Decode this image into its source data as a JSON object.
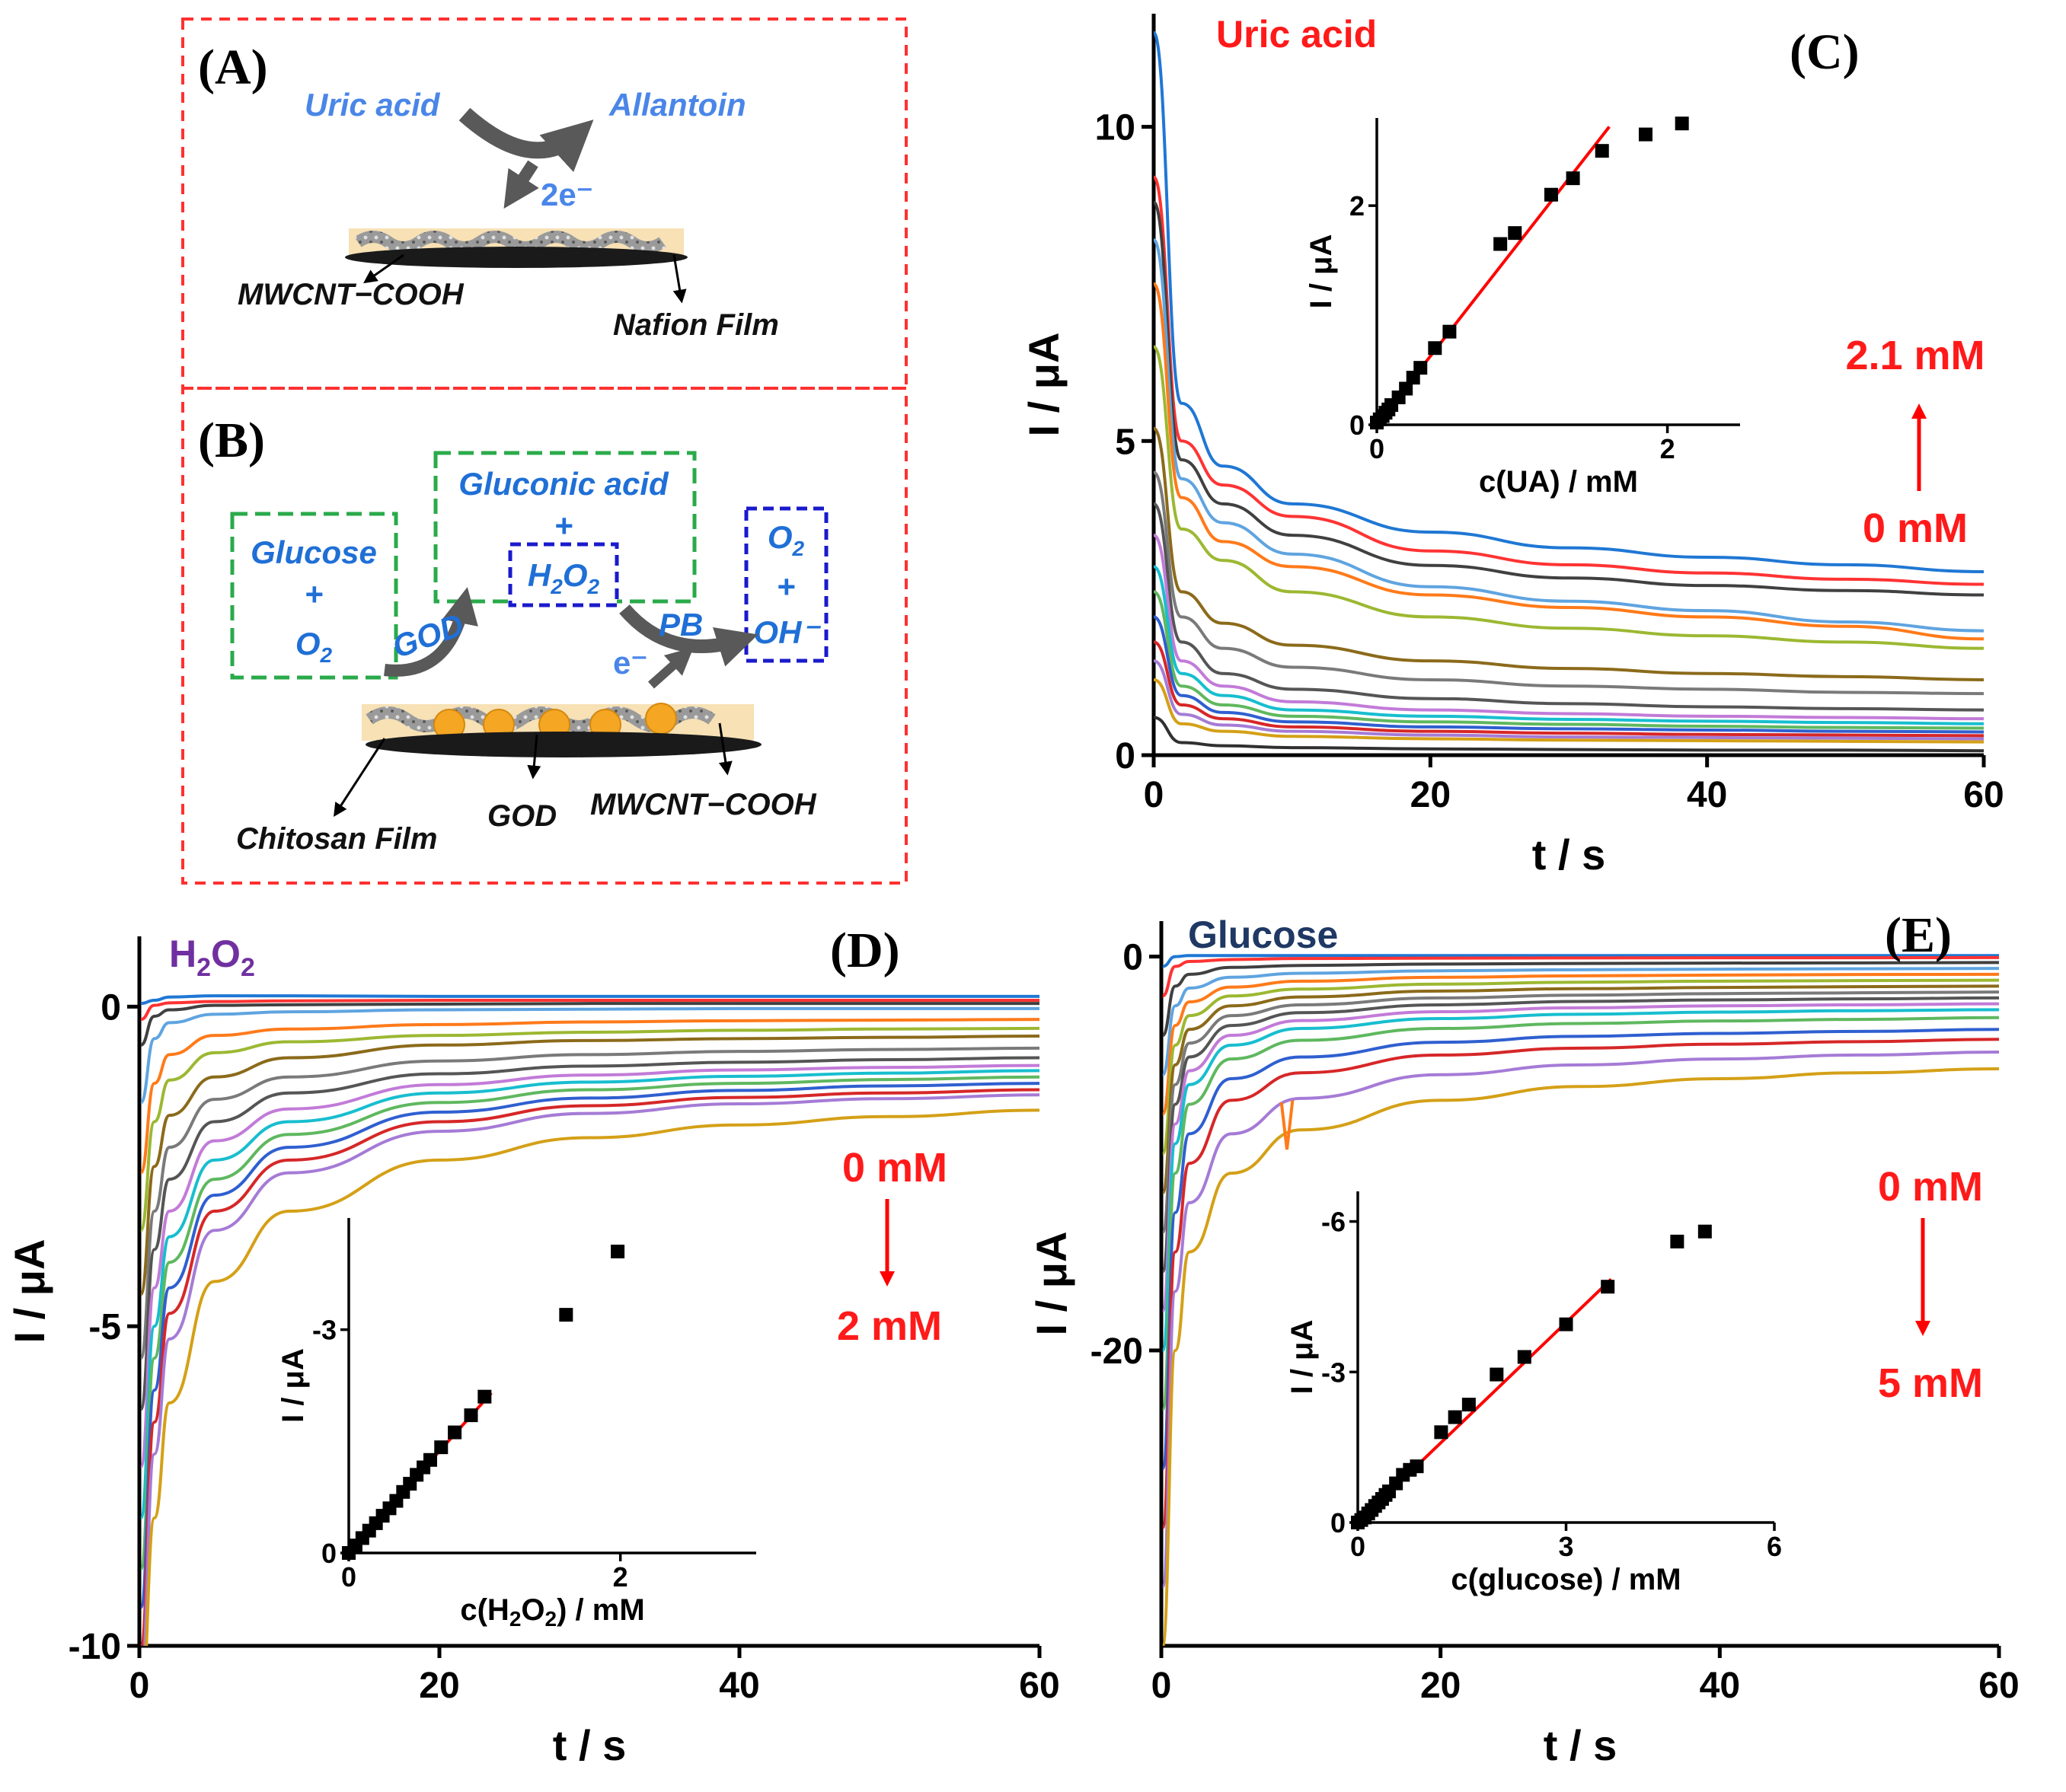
{
  "scheme_a": {
    "panel_label": "(A)",
    "reactant": "Uric acid",
    "product": "Allantoin",
    "electrons": "2e⁻",
    "label_left": "MWCNT−COOH",
    "label_right": "Nafion Film"
  },
  "scheme_b": {
    "panel_label": "(B)",
    "box1_line1": "Glucose",
    "box1_line2": "+",
    "box1_line3": "O",
    "box1_line3_sub": "2",
    "box2_line1": "Gluconic acid",
    "box2_line2": "+",
    "box3_main": "H",
    "box3_sub1": "2",
    "box3_mid": "O",
    "box3_sub2": "2",
    "box4_line1": "O",
    "box4_line1_sub": "2",
    "box4_line2": "+",
    "box4_line3": "OH⁻",
    "enzyme_label": "GOD",
    "pb_label": "PB",
    "electron_label": "e⁻",
    "label_film": "Chitosan Film",
    "label_god": "GOD",
    "label_cnt": "MWCNT−COOH"
  },
  "colors": {
    "red_accent": "#ff1a1a",
    "scheme_text_blue": "#4a86e8",
    "dashed_red": "#ff3030",
    "dashed_green": "#2aaa4a",
    "dashed_blue": "#1a1acc",
    "fit_red": "#ff0000",
    "h2o2_purple": "#7030a0",
    "glucose_navy": "#1f3864"
  },
  "panel_c": {
    "panel_label": "(C)",
    "analyte": "Uric acid",
    "conc_high": "2.1 mM",
    "conc_low": "0 mM"
  },
  "panel_d": {
    "panel_label": "(D)",
    "analyte_main": "H",
    "analyte_sub1": "2",
    "analyte_mid": "O",
    "analyte_sub2": "2",
    "conc_start": "0 mM",
    "conc_end": "2 mM"
  },
  "panel_e": {
    "panel_label": "(E)",
    "analyte": "Glucose",
    "conc_start": "0 mM",
    "conc_end": "5 mM"
  },
  "chart_data": [
    {
      "id": "C-main",
      "type": "line",
      "title": "Uric acid",
      "xlabel": "t / s",
      "ylabel": "I / μA",
      "xlim": [
        0,
        60
      ],
      "ylim": [
        0,
        11.8
      ],
      "xticks": [
        "0",
        "20",
        "40",
        "60"
      ],
      "yticks": [
        "0",
        "5",
        "10"
      ],
      "x": [
        0,
        2,
        5,
        10,
        20,
        30,
        40,
        50,
        60
      ],
      "series_note_colors": [
        "#1f77d4",
        "#ff3333",
        "#404040",
        "#2e9ecf",
        "#ff7a1a",
        "#9cb832",
        "#8b6a1a",
        "#c0c0c0",
        "#555555",
        "#e377c2",
        "#17becf",
        "#5fb85f",
        "#1f77d4",
        "#d62728",
        "#9467bd",
        "#ff9933",
        "#404040"
      ],
      "series": [
        {
          "values": [
            11.5,
            5.6,
            4.6,
            4.0,
            3.55,
            3.3,
            3.15,
            3.03,
            2.92
          ]
        },
        {
          "values": [
            9.2,
            5.0,
            4.3,
            3.8,
            3.25,
            3.03,
            2.9,
            2.8,
            2.72
          ]
        },
        {
          "values": [
            8.8,
            4.7,
            4.0,
            3.5,
            3.02,
            2.82,
            2.7,
            2.62,
            2.55
          ]
        },
        {
          "values": [
            8.2,
            4.4,
            3.7,
            3.2,
            2.68,
            2.45,
            2.3,
            2.12,
            1.98
          ]
        },
        {
          "values": [
            7.5,
            4.1,
            3.4,
            3.0,
            2.55,
            2.35,
            2.2,
            2.05,
            1.85
          ]
        },
        {
          "values": [
            6.5,
            3.6,
            3.1,
            2.6,
            2.2,
            2.02,
            1.9,
            1.8,
            1.7
          ]
        },
        {
          "values": [
            5.2,
            2.6,
            2.1,
            1.75,
            1.5,
            1.38,
            1.3,
            1.25,
            1.2
          ]
        },
        {
          "values": [
            4.5,
            2.2,
            1.7,
            1.4,
            1.2,
            1.1,
            1.05,
            1.0,
            0.98
          ]
        },
        {
          "values": [
            4.0,
            1.8,
            1.3,
            1.05,
            0.9,
            0.82,
            0.77,
            0.74,
            0.72
          ]
        },
        {
          "values": [
            3.5,
            1.5,
            1.1,
            0.85,
            0.72,
            0.66,
            0.62,
            0.6,
            0.58
          ]
        },
        {
          "values": [
            3.0,
            1.3,
            0.95,
            0.72,
            0.62,
            0.57,
            0.54,
            0.52,
            0.5
          ]
        },
        {
          "values": [
            2.6,
            1.1,
            0.8,
            0.62,
            0.53,
            0.49,
            0.46,
            0.44,
            0.43
          ]
        },
        {
          "values": [
            2.2,
            0.95,
            0.68,
            0.53,
            0.45,
            0.42,
            0.4,
            0.38,
            0.37
          ]
        },
        {
          "values": [
            1.8,
            0.8,
            0.58,
            0.45,
            0.38,
            0.35,
            0.33,
            0.32,
            0.31
          ]
        },
        {
          "values": [
            1.5,
            0.65,
            0.48,
            0.38,
            0.32,
            0.29,
            0.28,
            0.27,
            0.26
          ]
        },
        {
          "values": [
            1.2,
            0.5,
            0.38,
            0.3,
            0.26,
            0.24,
            0.23,
            0.22,
            0.21
          ]
        },
        {
          "values": [
            0.6,
            0.2,
            0.15,
            0.12,
            0.1,
            0.09,
            0.08,
            0.08,
            0.07
          ]
        }
      ]
    },
    {
      "id": "C-inset",
      "type": "scatter",
      "xlabel": "c(UA) / mM",
      "ylabel": "I / μA",
      "xlim": [
        0,
        2.5
      ],
      "ylim": [
        0,
        2.8
      ],
      "xticks": [
        "0",
        "2"
      ],
      "yticks": [
        "0",
        "2"
      ],
      "points": [
        [
          0.0,
          0.02
        ],
        [
          0.02,
          0.05
        ],
        [
          0.04,
          0.08
        ],
        [
          0.06,
          0.11
        ],
        [
          0.08,
          0.14
        ],
        [
          0.1,
          0.18
        ],
        [
          0.15,
          0.25
        ],
        [
          0.2,
          0.33
        ],
        [
          0.25,
          0.43
        ],
        [
          0.3,
          0.52
        ],
        [
          0.4,
          0.7
        ],
        [
          0.5,
          0.85
        ],
        [
          0.85,
          1.65
        ],
        [
          0.95,
          1.75
        ],
        [
          1.2,
          2.1
        ],
        [
          1.35,
          2.25
        ],
        [
          1.55,
          2.5
        ],
        [
          1.85,
          2.65
        ],
        [
          2.1,
          2.75
        ]
      ],
      "fit": [
        [
          0,
          0
        ],
        [
          1.6,
          2.72
        ]
      ]
    },
    {
      "id": "D-main",
      "type": "line",
      "title": "H2O2",
      "xlabel": "t / s",
      "ylabel": "I / μA",
      "xlim": [
        0,
        60
      ],
      "ylim": [
        -10,
        1.1
      ],
      "xticks": [
        "0",
        "20",
        "40",
        "60"
      ],
      "yticks": [
        "-10",
        "-5",
        "0"
      ],
      "x": [
        0.1,
        1,
        2,
        5,
        10,
        20,
        30,
        40,
        50,
        60
      ],
      "series": [
        {
          "values": [
            0.05,
            0.1,
            0.15,
            0.17,
            0.17,
            0.16,
            0.16,
            0.16,
            0.16,
            0.16
          ]
        },
        {
          "values": [
            -0.2,
            0.02,
            0.06,
            0.08,
            0.09,
            0.1,
            0.1,
            0.1,
            0.1,
            0.1
          ]
        },
        {
          "values": [
            -0.6,
            -0.15,
            -0.05,
            0.02,
            0.03,
            0.04,
            0.05,
            0.05,
            0.05,
            0.05
          ]
        },
        {
          "values": [
            -1.5,
            -0.5,
            -0.25,
            -0.12,
            -0.08,
            -0.05,
            -0.04,
            -0.03,
            -0.03,
            -0.03
          ]
        },
        {
          "values": [
            -2.6,
            -1.2,
            -0.75,
            -0.45,
            -0.35,
            -0.28,
            -0.24,
            -0.22,
            -0.21,
            -0.2
          ]
        },
        {
          "values": [
            -3.5,
            -1.8,
            -1.15,
            -0.72,
            -0.55,
            -0.45,
            -0.4,
            -0.37,
            -0.35,
            -0.34
          ]
        },
        {
          "values": [
            -4.5,
            -2.5,
            -1.7,
            -1.1,
            -0.8,
            -0.6,
            -0.53,
            -0.5,
            -0.48,
            -0.46
          ]
        },
        {
          "values": [
            -5.5,
            -3.2,
            -2.2,
            -1.45,
            -1.1,
            -0.85,
            -0.75,
            -0.7,
            -0.67,
            -0.65
          ]
        },
        {
          "values": [
            -6.3,
            -3.8,
            -2.7,
            -1.8,
            -1.35,
            -1.05,
            -0.93,
            -0.87,
            -0.83,
            -0.8
          ]
        },
        {
          "values": [
            -7.2,
            -4.4,
            -3.2,
            -2.1,
            -1.6,
            -1.22,
            -1.07,
            -0.99,
            -0.95,
            -0.92
          ]
        },
        {
          "values": [
            -8.0,
            -5.0,
            -3.6,
            -2.4,
            -1.8,
            -1.35,
            -1.18,
            -1.09,
            -1.04,
            -1.0
          ]
        },
        {
          "values": [
            -8.8,
            -5.5,
            -4.0,
            -2.7,
            -2.0,
            -1.5,
            -1.3,
            -1.2,
            -1.14,
            -1.1
          ]
        },
        {
          "values": [
            -9.4,
            -6.0,
            -4.4,
            -2.95,
            -2.2,
            -1.65,
            -1.43,
            -1.31,
            -1.24,
            -1.2
          ]
        },
        {
          "values": [
            -10.0,
            -6.5,
            -4.8,
            -3.2,
            -2.4,
            -1.8,
            -1.55,
            -1.42,
            -1.35,
            -1.3
          ]
        },
        {
          "values": [
            -10.5,
            -7.0,
            -5.2,
            -3.5,
            -2.6,
            -1.95,
            -1.67,
            -1.52,
            -1.44,
            -1.38
          ]
        },
        {
          "values": [
            -11.0,
            -8.0,
            -6.2,
            -4.3,
            -3.2,
            -2.4,
            -2.05,
            -1.85,
            -1.72,
            -1.62
          ]
        }
      ]
    },
    {
      "id": "D-inset",
      "type": "scatter",
      "xlabel": "c(H2O2) / mM",
      "ylabel": "I / μA",
      "xlim": [
        0,
        3
      ],
      "ylim": [
        0,
        -4.5
      ],
      "xticks": [
        "0",
        "2"
      ],
      "yticks": [
        "0",
        "-3"
      ],
      "points": [
        [
          0.0,
          0.0
        ],
        [
          0.05,
          -0.1
        ],
        [
          0.1,
          -0.2
        ],
        [
          0.15,
          -0.3
        ],
        [
          0.2,
          -0.4
        ],
        [
          0.25,
          -0.5
        ],
        [
          0.3,
          -0.6
        ],
        [
          0.35,
          -0.7
        ],
        [
          0.4,
          -0.82
        ],
        [
          0.45,
          -0.93
        ],
        [
          0.5,
          -1.05
        ],
        [
          0.55,
          -1.15
        ],
        [
          0.6,
          -1.25
        ],
        [
          0.68,
          -1.42
        ],
        [
          0.78,
          -1.62
        ],
        [
          0.9,
          -1.85
        ],
        [
          1.0,
          -2.1
        ],
        [
          1.6,
          -3.2
        ],
        [
          1.98,
          -4.05
        ]
      ],
      "fit": [
        [
          0,
          0
        ],
        [
          1.05,
          -2.15
        ]
      ]
    },
    {
      "id": "E-main",
      "type": "line",
      "title": "Glucose",
      "xlabel": "t / s",
      "ylabel": "I / μA",
      "xlim": [
        0,
        60
      ],
      "ylim": [
        -35,
        1.8
      ],
      "xticks": [
        "0",
        "20",
        "40",
        "60"
      ],
      "yticks": [
        "-20",
        "0"
      ],
      "x": [
        0.1,
        1,
        2,
        5,
        10,
        20,
        30,
        40,
        50,
        60
      ],
      "series": [
        {
          "values": [
            -0.5,
            0.0,
            0.05,
            0.05,
            0.05,
            0.05,
            0.05,
            0.05,
            0.05,
            0.05
          ]
        },
        {
          "values": [
            -2,
            -0.5,
            -0.25,
            -0.15,
            -0.1,
            -0.08,
            -0.07,
            -0.06,
            -0.06,
            -0.05
          ]
        },
        {
          "values": [
            -4,
            -1.5,
            -0.9,
            -0.55,
            -0.45,
            -0.38,
            -0.35,
            -0.33,
            -0.32,
            -0.3
          ]
        },
        {
          "values": [
            -6,
            -2.5,
            -1.6,
            -1.05,
            -0.85,
            -0.72,
            -0.67,
            -0.64,
            -0.62,
            -0.6
          ]
        },
        {
          "values": [
            -8,
            -3.5,
            -2.3,
            -1.55,
            -1.25,
            -1.05,
            -0.98,
            -0.94,
            -0.91,
            -0.9
          ]
        },
        {
          "values": [
            -10,
            -4.5,
            -3.0,
            -2.0,
            -1.65,
            -1.4,
            -1.3,
            -1.25,
            -1.22,
            -1.2
          ]
        },
        {
          "values": [
            -12,
            -5.5,
            -3.7,
            -2.5,
            -2.05,
            -1.75,
            -1.63,
            -1.57,
            -1.53,
            -1.5
          ]
        },
        {
          "values": [
            -14,
            -6.5,
            -4.4,
            -3.0,
            -2.45,
            -2.1,
            -1.96,
            -1.88,
            -1.84,
            -1.8
          ]
        },
        {
          "values": [
            -16,
            -7.5,
            -5.1,
            -3.5,
            -2.85,
            -2.45,
            -2.28,
            -2.2,
            -2.15,
            -2.1
          ]
        },
        {
          "values": [
            -18,
            -8.5,
            -5.8,
            -4.0,
            -3.25,
            -2.8,
            -2.6,
            -2.5,
            -2.45,
            -2.4
          ]
        },
        {
          "values": [
            -20,
            -9.5,
            -6.5,
            -4.5,
            -3.65,
            -3.15,
            -2.93,
            -2.82,
            -2.75,
            -2.7
          ]
        },
        {
          "values": [
            -23,
            -11,
            -7.5,
            -5.2,
            -4.25,
            -3.65,
            -3.4,
            -3.27,
            -3.19,
            -3.1
          ]
        },
        {
          "values": [
            -26,
            -13,
            -9.0,
            -6.2,
            -5.1,
            -4.35,
            -4.05,
            -3.9,
            -3.8,
            -3.7
          ]
        },
        {
          "values": [
            -29,
            -15,
            -10.5,
            -7.3,
            -5.9,
            -5.0,
            -4.65,
            -4.45,
            -4.32,
            -4.2
          ]
        },
        {
          "values": [
            -32,
            -17,
            -12.5,
            -9.0,
            -7.2,
            -6.0,
            -5.5,
            -5.2,
            -5.0,
            -4.85
          ]
        },
        {
          "values": [
            -35,
            -20,
            -15.0,
            -11.0,
            -8.8,
            -7.3,
            -6.6,
            -6.2,
            -5.9,
            -5.7
          ]
        }
      ]
    },
    {
      "id": "E-inset",
      "type": "scatter",
      "xlabel": "c(glucose) / mM",
      "ylabel": "I / μA",
      "xlim": [
        0,
        6
      ],
      "ylim": [
        0,
        -6.6
      ],
      "xticks": [
        "0",
        "3",
        "6"
      ],
      "yticks": [
        "0",
        "-3",
        "-6"
      ],
      "points": [
        [
          0.0,
          0.0
        ],
        [
          0.05,
          -0.05
        ],
        [
          0.1,
          -0.1
        ],
        [
          0.15,
          -0.18
        ],
        [
          0.2,
          -0.25
        ],
        [
          0.25,
          -0.33
        ],
        [
          0.3,
          -0.4
        ],
        [
          0.35,
          -0.47
        ],
        [
          0.4,
          -0.55
        ],
        [
          0.45,
          -0.62
        ],
        [
          0.55,
          -0.78
        ],
        [
          0.65,
          -0.95
        ],
        [
          0.75,
          -1.05
        ],
        [
          0.85,
          -1.12
        ],
        [
          1.2,
          -1.8
        ],
        [
          1.4,
          -2.1
        ],
        [
          1.6,
          -2.35
        ],
        [
          2.0,
          -2.95
        ],
        [
          2.4,
          -3.3
        ],
        [
          3.0,
          -3.95
        ],
        [
          3.6,
          -4.7
        ],
        [
          4.6,
          -5.6
        ],
        [
          5.0,
          -5.8
        ]
      ],
      "fit": [
        [
          0,
          0
        ],
        [
          3.65,
          -4.85
        ]
      ]
    }
  ]
}
